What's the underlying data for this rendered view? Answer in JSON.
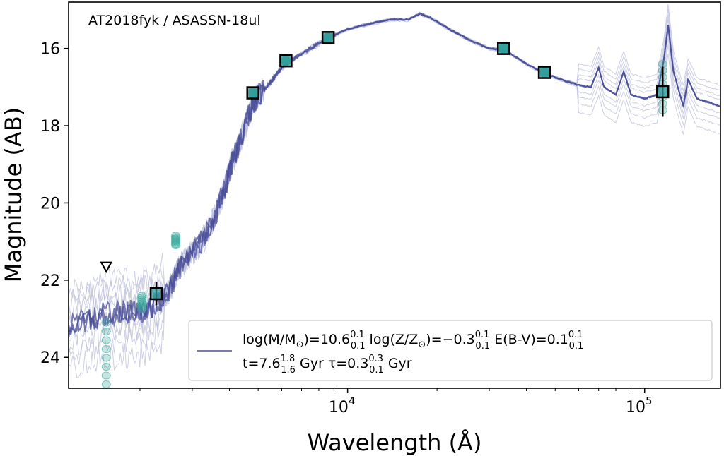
{
  "chart_data": {
    "type": "line",
    "annotation": "AT2018fyk / ASASSN-18ul",
    "xlabel": "Wavelength (Å)",
    "ylabel": "Magnitude (AB)",
    "xscale": "log",
    "xlim": [
      1150,
      180000
    ],
    "ylim": [
      24.8,
      14.8
    ],
    "y_ticks": [
      16,
      18,
      20,
      22,
      24
    ],
    "y_tick_labels": [
      "16",
      "18",
      "20",
      "22",
      "24"
    ],
    "x_ticks": [
      {
        "value": 10000,
        "base": "10",
        "exp": "4"
      },
      {
        "value": 100000,
        "base": "10",
        "exp": "5"
      }
    ],
    "legend": {
      "placement": "lower-right",
      "line1": {
        "a": "log(M/M",
        "sun": "⊙",
        "b": ")=10.6",
        "b_sup": "0.1",
        "b_sub": "0.1",
        "c": "  log(Z/Z",
        "d": ")=−0.3",
        "d_sup": "0.1",
        "d_sub": "0.1",
        "e": "  E(B-V)=0.1",
        "e_sup": "0.1",
        "e_sub": "0.1"
      },
      "line2": {
        "a": "t=7.6",
        "a_sup": "1.8",
        "a_sub": "1.6",
        "b": " Gyr  τ=0.3",
        "b_sup": "0.3",
        "b_sub": "0.1",
        "c": " Gyr"
      }
    },
    "model_sed": [
      [
        1150,
        23.2
      ],
      [
        1350,
        23.0
      ],
      [
        1500,
        22.9
      ],
      [
        1700,
        22.85
      ],
      [
        1900,
        22.8
      ],
      [
        2100,
        22.8
      ],
      [
        2300,
        22.6
      ],
      [
        2500,
        22.3
      ],
      [
        2700,
        21.7
      ],
      [
        3000,
        21.3
      ],
      [
        3300,
        20.9
      ],
      [
        3600,
        20.3
      ],
      [
        3900,
        19.5
      ],
      [
        4100,
        18.9
      ],
      [
        4400,
        18.3
      ],
      [
        4800,
        17.4
      ],
      [
        5200,
        17.1
      ],
      [
        5600,
        16.8
      ],
      [
        6000,
        16.5
      ],
      [
        6500,
        16.3
      ],
      [
        7500,
        16.0
      ],
      [
        8600,
        15.72
      ],
      [
        10000,
        15.5
      ],
      [
        12000,
        15.35
      ],
      [
        14000,
        15.25
      ],
      [
        16000,
        15.25
      ],
      [
        17500,
        15.1
      ],
      [
        19000,
        15.2
      ],
      [
        22000,
        15.5
      ],
      [
        26000,
        15.8
      ],
      [
        30000,
        16.0
      ],
      [
        34000,
        16.05
      ],
      [
        40000,
        16.4
      ],
      [
        46000,
        16.65
      ],
      [
        52000,
        16.8
      ],
      [
        60000,
        16.95
      ],
      [
        66000,
        17.0
      ],
      [
        70000,
        16.5
      ],
      [
        73000,
        17.0
      ],
      [
        80000,
        17.2
      ],
      [
        85000,
        16.6
      ],
      [
        90000,
        17.2
      ],
      [
        100000,
        17.3
      ],
      [
        110000,
        17.2
      ],
      [
        116000,
        16.3
      ],
      [
        120000,
        15.4
      ],
      [
        125000,
        16.6
      ],
      [
        135000,
        17.5
      ],
      [
        140000,
        16.8
      ],
      [
        150000,
        17.3
      ],
      [
        165000,
        17.4
      ],
      [
        180000,
        17.5
      ]
    ],
    "observed": [
      {
        "x": 2270,
        "y": 22.35,
        "yerr": 0.3
      },
      {
        "x": 4800,
        "y": 17.15,
        "yerr": 0.0
      },
      {
        "x": 6200,
        "y": 16.32,
        "yerr": 0.0
      },
      {
        "x": 8600,
        "y": 15.72,
        "yerr": 0.0
      },
      {
        "x": 33500,
        "y": 16.0,
        "yerr": 0.0
      },
      {
        "x": 46000,
        "y": 16.62,
        "yerr": 0.0
      },
      {
        "x": 115000,
        "y": 17.12,
        "yerr": 0.65
      }
    ],
    "upper_limits": [
      {
        "x": 1540,
        "y": 21.65
      }
    ],
    "model_photometry": [
      {
        "x": 1540,
        "y_min": 23.1,
        "y_max": 24.7
      },
      {
        "x": 2030,
        "y_min": 22.4,
        "y_max": 22.75
      },
      {
        "x": 2640,
        "y_min": 20.85,
        "y_max": 21.1
      },
      {
        "x": 4800,
        "y_min": 17.1,
        "y_max": 17.2
      },
      {
        "x": 6200,
        "y_min": 16.28,
        "y_max": 16.36
      },
      {
        "x": 8600,
        "y_min": 15.68,
        "y_max": 15.76
      },
      {
        "x": 33500,
        "y_min": 15.96,
        "y_max": 16.04
      },
      {
        "x": 46000,
        "y_min": 16.58,
        "y_max": 16.66
      },
      {
        "x": 115000,
        "y_min": 16.4,
        "y_max": 17.6
      }
    ],
    "colors": {
      "model_line": "#4b4f9a",
      "model_faint": "#b9bcd8",
      "model_photometry": "#3aa89a",
      "observed_edge": "#000000",
      "observed_fill": "#2f9c9c"
    }
  }
}
